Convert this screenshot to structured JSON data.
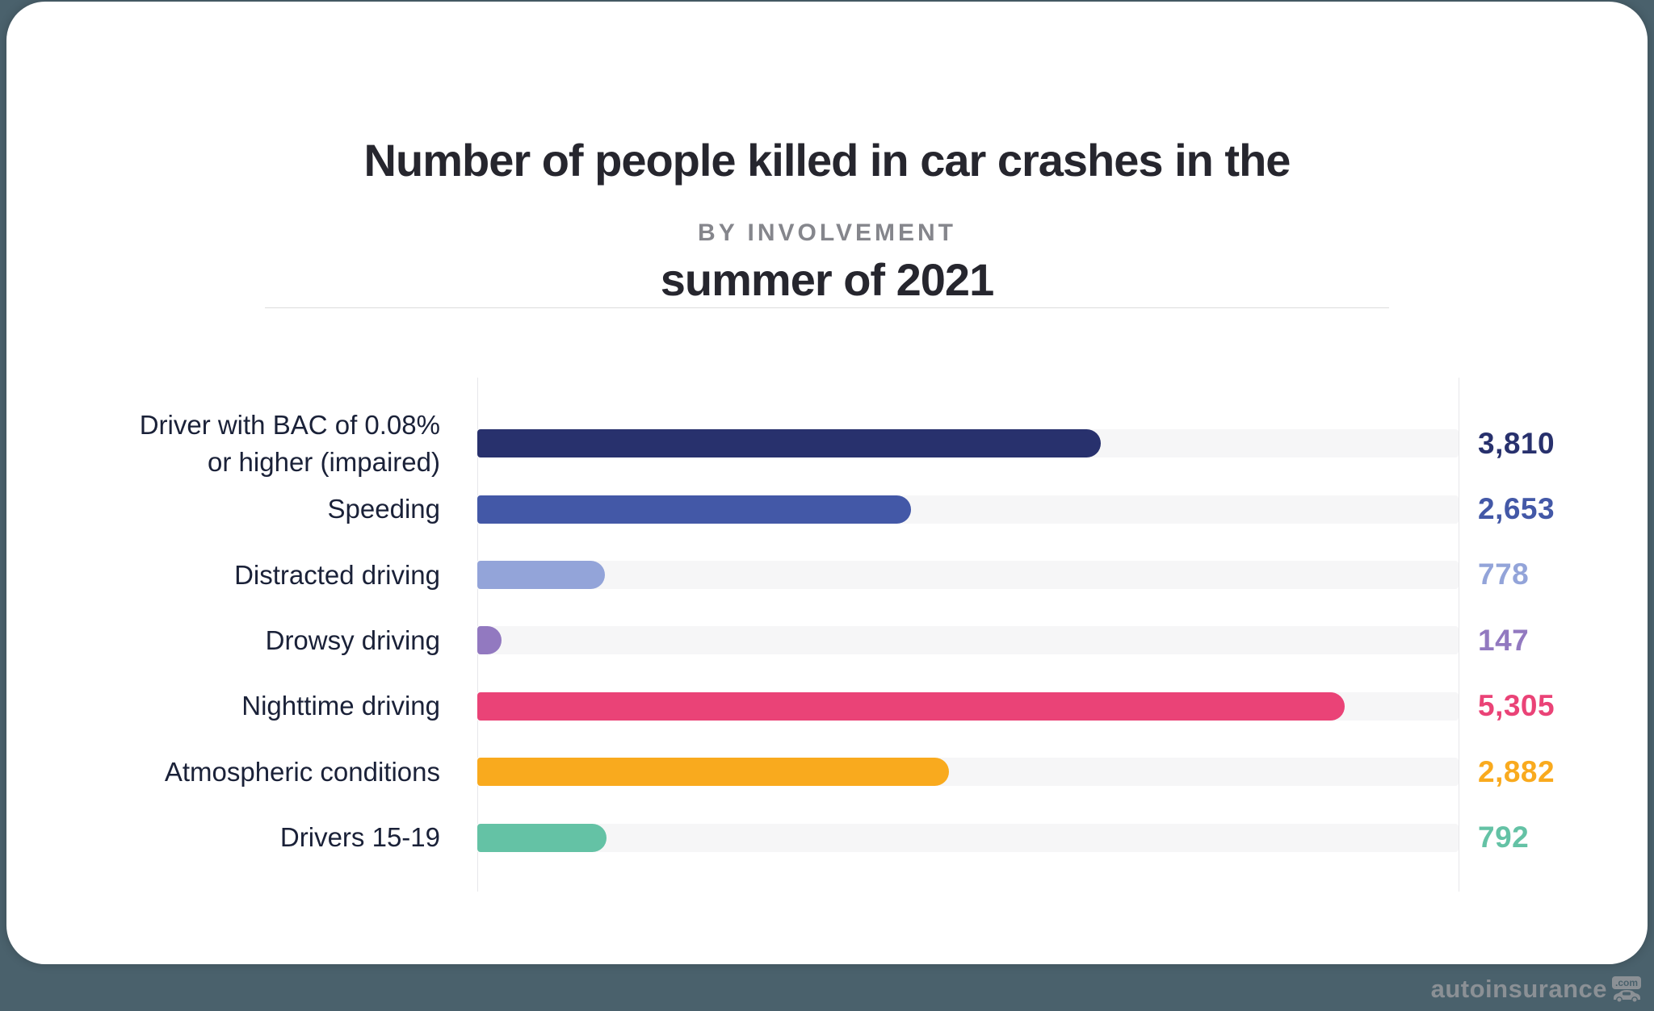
{
  "title_line1": "Number of people killed in car crashes in the",
  "title_line2": "summer of 2021",
  "subtitle": "BY INVOLVEMENT",
  "watermark": {
    "name": "autoinsurance",
    "badge": ".com"
  },
  "page_background": "#4a616c",
  "card_background": "#ffffff",
  "track_color": "#f6f6f7",
  "chart_data": {
    "type": "bar",
    "orientation": "horizontal",
    "title": "Number of people killed in car crashes in the summer of 2021",
    "subtitle": "BY INVOLVEMENT",
    "categories": [
      "Driver with BAC of 0.08% or higher (impaired)",
      "Speeding",
      "Distracted driving",
      "Drowsy driving",
      "Nighttime driving",
      "Atmospheric conditions",
      "Drivers 15-19"
    ],
    "values": [
      3810,
      2653,
      778,
      147,
      5305,
      2882,
      792
    ],
    "value_labels": [
      "3,810",
      "2,653",
      "778",
      "147",
      "5,305",
      "2,882",
      "792"
    ],
    "colors": [
      "#28316d",
      "#4358a7",
      "#93a4d9",
      "#9279c0",
      "#ea4377",
      "#f9aa1e",
      "#64c2a5"
    ],
    "xlabel": "",
    "ylabel": "",
    "xlim": [
      0,
      6000
    ],
    "grid": false,
    "legend": false,
    "value_label_position": "right"
  },
  "rows": [
    {
      "label": "Driver with BAC of 0.08%\nor higher (impaired)",
      "value": 3810,
      "value_label": "3,810",
      "color": "#28316d"
    },
    {
      "label": "Speeding",
      "value": 2653,
      "value_label": "2,653",
      "color": "#4358a7"
    },
    {
      "label": "Distracted driving",
      "value": 778,
      "value_label": "778",
      "color": "#93a4d9"
    },
    {
      "label": "Drowsy driving",
      "value": 147,
      "value_label": "147",
      "color": "#9279c0"
    },
    {
      "label": "Nighttime driving",
      "value": 5305,
      "value_label": "5,305",
      "color": "#ea4377"
    },
    {
      "label": "Atmospheric conditions",
      "value": 2882,
      "value_label": "2,882",
      "color": "#f9aa1e"
    },
    {
      "label": "Drivers 15-19",
      "value": 792,
      "value_label": "792",
      "color": "#64c2a5"
    }
  ]
}
